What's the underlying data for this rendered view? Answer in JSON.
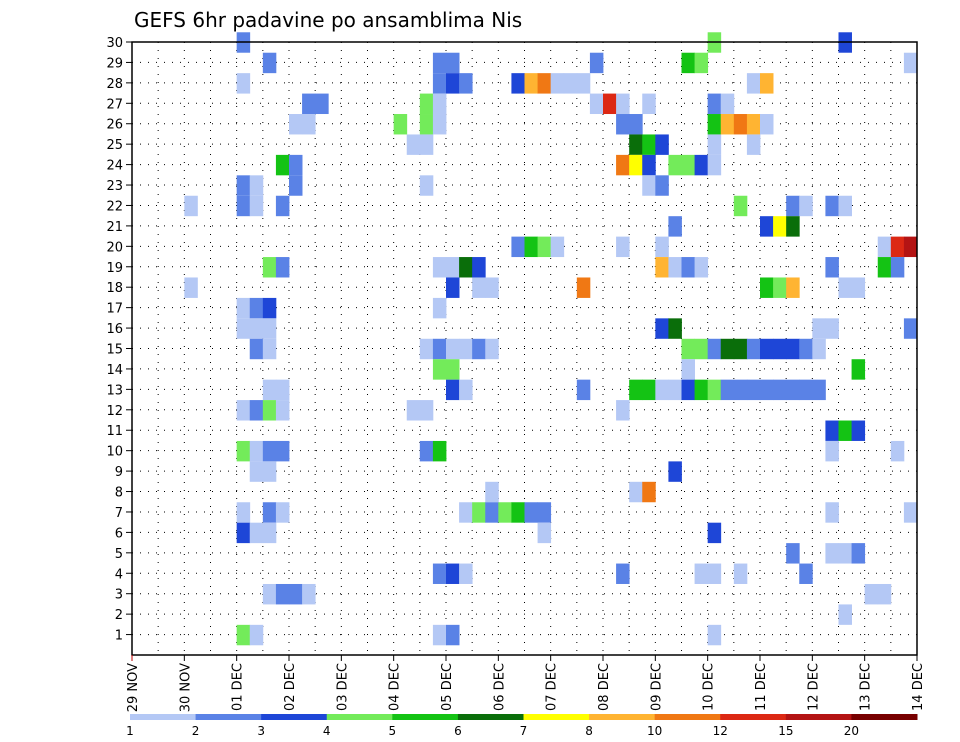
{
  "chart_data": {
    "type": "heatmap",
    "title": "GEFS 6hr padavine po ansamblima Nis",
    "x_tick_labels": [
      "29 NOV",
      "30 NOV",
      "01 DEC",
      "02 DEC",
      "03 DEC",
      "04 DEC",
      "05 DEC",
      "06 DEC",
      "07 DEC",
      "08 DEC",
      "09 DEC",
      "10 DEC",
      "11 DEC",
      "12 DEC",
      "13 DEC",
      "14 DEC"
    ],
    "x_start": "29 NOV",
    "x_step_hours": 6,
    "ylim": [
      0,
      30
    ],
    "y_tick_labels": [
      "1",
      "2",
      "3",
      "4",
      "5",
      "6",
      "7",
      "8",
      "9",
      "10",
      "11",
      "12",
      "13",
      "14",
      "15",
      "16",
      "17",
      "18",
      "19",
      "20",
      "21",
      "22",
      "23",
      "24",
      "25",
      "26",
      "27",
      "28",
      "29",
      "30"
    ],
    "grid": true,
    "legend": {
      "position": "bottom",
      "levels": [
        "1",
        "2",
        "3",
        "4",
        "5",
        "6",
        "7",
        "8",
        "10",
        "12",
        "15",
        "20"
      ],
      "colors": [
        "#b4c8f5",
        "#5a82e6",
        "#1e46d7",
        "#73eb5a",
        "#14c314",
        "#0a6e0a",
        "#ffff00",
        "#ffb432",
        "#f07814",
        "#dc2814",
        "#b41414",
        "#780000"
      ]
    },
    "cells": [
      {
        "row": 30,
        "col": 9,
        "cls": 2
      },
      {
        "row": 30,
        "col": 45,
        "cls": 4
      },
      {
        "row": 30,
        "col": 55,
        "cls": 3
      },
      {
        "row": 29,
        "col": 11,
        "cls": 2
      },
      {
        "row": 29,
        "col": 24,
        "cls": 2
      },
      {
        "row": 29,
        "col": 25,
        "cls": 2
      },
      {
        "row": 29,
        "col": 36,
        "cls": 2
      },
      {
        "row": 29,
        "col": 43,
        "cls": 5
      },
      {
        "row": 29,
        "col": 44,
        "cls": 4
      },
      {
        "row": 29,
        "col": 60,
        "cls": 1
      },
      {
        "row": 28,
        "col": 9,
        "cls": 1
      },
      {
        "row": 28,
        "col": 24,
        "cls": 2
      },
      {
        "row": 28,
        "col": 25,
        "cls": 3
      },
      {
        "row": 28,
        "col": 26,
        "cls": 2
      },
      {
        "row": 28,
        "col": 30,
        "cls": 3
      },
      {
        "row": 28,
        "col": 31,
        "cls": 8
      },
      {
        "row": 28,
        "col": 32,
        "cls": 9
      },
      {
        "row": 28,
        "col": 33,
        "cls": 1
      },
      {
        "row": 28,
        "col": 34,
        "cls": 1
      },
      {
        "row": 28,
        "col": 35,
        "cls": 1
      },
      {
        "row": 28,
        "col": 48,
        "cls": 1
      },
      {
        "row": 28,
        "col": 49,
        "cls": 8
      },
      {
        "row": 27,
        "col": 14,
        "cls": 2
      },
      {
        "row": 27,
        "col": 15,
        "cls": 2
      },
      {
        "row": 27,
        "col": 23,
        "cls": 4
      },
      {
        "row": 27,
        "col": 24,
        "cls": 1
      },
      {
        "row": 27,
        "col": 36,
        "cls": 1
      },
      {
        "row": 27,
        "col": 37,
        "cls": 10
      },
      {
        "row": 27,
        "col": 38,
        "cls": 1
      },
      {
        "row": 27,
        "col": 40,
        "cls": 1
      },
      {
        "row": 27,
        "col": 45,
        "cls": 2
      },
      {
        "row": 27,
        "col": 46,
        "cls": 1
      },
      {
        "row": 26,
        "col": 13,
        "cls": 1
      },
      {
        "row": 26,
        "col": 14,
        "cls": 1
      },
      {
        "row": 26,
        "col": 21,
        "cls": 4
      },
      {
        "row": 26,
        "col": 23,
        "cls": 4
      },
      {
        "row": 26,
        "col": 24,
        "cls": 1
      },
      {
        "row": 26,
        "col": 38,
        "cls": 2
      },
      {
        "row": 26,
        "col": 39,
        "cls": 2
      },
      {
        "row": 26,
        "col": 45,
        "cls": 5
      },
      {
        "row": 26,
        "col": 46,
        "cls": 8
      },
      {
        "row": 26,
        "col": 47,
        "cls": 9
      },
      {
        "row": 26,
        "col": 48,
        "cls": 8
      },
      {
        "row": 26,
        "col": 49,
        "cls": 1
      },
      {
        "row": 25,
        "col": 22,
        "cls": 1
      },
      {
        "row": 25,
        "col": 23,
        "cls": 1
      },
      {
        "row": 25,
        "col": 39,
        "cls": 6
      },
      {
        "row": 25,
        "col": 40,
        "cls": 5
      },
      {
        "row": 25,
        "col": 41,
        "cls": 3
      },
      {
        "row": 25,
        "col": 45,
        "cls": 1
      },
      {
        "row": 25,
        "col": 48,
        "cls": 1
      },
      {
        "row": 24,
        "col": 12,
        "cls": 5
      },
      {
        "row": 24,
        "col": 13,
        "cls": 2
      },
      {
        "row": 24,
        "col": 38,
        "cls": 9
      },
      {
        "row": 24,
        "col": 39,
        "cls": 7
      },
      {
        "row": 24,
        "col": 40,
        "cls": 3
      },
      {
        "row": 24,
        "col": 42,
        "cls": 4
      },
      {
        "row": 24,
        "col": 43,
        "cls": 4
      },
      {
        "row": 24,
        "col": 44,
        "cls": 3
      },
      {
        "row": 24,
        "col": 45,
        "cls": 1
      },
      {
        "row": 23,
        "col": 9,
        "cls": 2
      },
      {
        "row": 23,
        "col": 10,
        "cls": 1
      },
      {
        "row": 23,
        "col": 13,
        "cls": 2
      },
      {
        "row": 23,
        "col": 23,
        "cls": 1
      },
      {
        "row": 23,
        "col": 40,
        "cls": 1
      },
      {
        "row": 23,
        "col": 41,
        "cls": 2
      },
      {
        "row": 22,
        "col": 5,
        "cls": 1
      },
      {
        "row": 22,
        "col": 9,
        "cls": 2
      },
      {
        "row": 22,
        "col": 10,
        "cls": 1
      },
      {
        "row": 22,
        "col": 12,
        "cls": 2
      },
      {
        "row": 22,
        "col": 47,
        "cls": 4
      },
      {
        "row": 22,
        "col": 51,
        "cls": 2
      },
      {
        "row": 22,
        "col": 52,
        "cls": 1
      },
      {
        "row": 22,
        "col": 54,
        "cls": 2
      },
      {
        "row": 22,
        "col": 55,
        "cls": 1
      },
      {
        "row": 21,
        "col": 42,
        "cls": 2
      },
      {
        "row": 21,
        "col": 49,
        "cls": 3
      },
      {
        "row": 21,
        "col": 50,
        "cls": 7
      },
      {
        "row": 21,
        "col": 51,
        "cls": 6
      },
      {
        "row": 20,
        "col": 30,
        "cls": 2
      },
      {
        "row": 20,
        "col": 31,
        "cls": 5
      },
      {
        "row": 20,
        "col": 32,
        "cls": 4
      },
      {
        "row": 20,
        "col": 33,
        "cls": 1
      },
      {
        "row": 20,
        "col": 38,
        "cls": 1
      },
      {
        "row": 20,
        "col": 41,
        "cls": 1
      },
      {
        "row": 20,
        "col": 58,
        "cls": 1
      },
      {
        "row": 20,
        "col": 59,
        "cls": 10
      },
      {
        "row": 20,
        "col": 60,
        "cls": 11
      },
      {
        "row": 19,
        "col": 11,
        "cls": 4
      },
      {
        "row": 19,
        "col": 12,
        "cls": 2
      },
      {
        "row": 19,
        "col": 24,
        "cls": 1
      },
      {
        "row": 19,
        "col": 25,
        "cls": 1
      },
      {
        "row": 19,
        "col": 26,
        "cls": 6
      },
      {
        "row": 19,
        "col": 27,
        "cls": 3
      },
      {
        "row": 19,
        "col": 41,
        "cls": 8
      },
      {
        "row": 19,
        "col": 42,
        "cls": 1
      },
      {
        "row": 19,
        "col": 43,
        "cls": 2
      },
      {
        "row": 19,
        "col": 44,
        "cls": 1
      },
      {
        "row": 19,
        "col": 54,
        "cls": 2
      },
      {
        "row": 19,
        "col": 58,
        "cls": 5
      },
      {
        "row": 19,
        "col": 59,
        "cls": 2
      },
      {
        "row": 18,
        "col": 5,
        "cls": 1
      },
      {
        "row": 18,
        "col": 25,
        "cls": 3
      },
      {
        "row": 18,
        "col": 27,
        "cls": 1
      },
      {
        "row": 18,
        "col": 28,
        "cls": 1
      },
      {
        "row": 18,
        "col": 35,
        "cls": 9
      },
      {
        "row": 18,
        "col": 49,
        "cls": 5
      },
      {
        "row": 18,
        "col": 50,
        "cls": 4
      },
      {
        "row": 18,
        "col": 51,
        "cls": 8
      },
      {
        "row": 18,
        "col": 55,
        "cls": 1
      },
      {
        "row": 18,
        "col": 56,
        "cls": 1
      },
      {
        "row": 17,
        "col": 9,
        "cls": 1
      },
      {
        "row": 17,
        "col": 10,
        "cls": 2
      },
      {
        "row": 17,
        "col": 11,
        "cls": 3
      },
      {
        "row": 17,
        "col": 24,
        "cls": 1
      },
      {
        "row": 16,
        "col": 9,
        "cls": 1
      },
      {
        "row": 16,
        "col": 10,
        "cls": 1
      },
      {
        "row": 16,
        "col": 11,
        "cls": 1
      },
      {
        "row": 16,
        "col": 41,
        "cls": 3
      },
      {
        "row": 16,
        "col": 42,
        "cls": 6
      },
      {
        "row": 16,
        "col": 53,
        "cls": 1
      },
      {
        "row": 16,
        "col": 54,
        "cls": 1
      },
      {
        "row": 16,
        "col": 60,
        "cls": 2
      },
      {
        "row": 15,
        "col": 10,
        "cls": 2
      },
      {
        "row": 15,
        "col": 11,
        "cls": 1
      },
      {
        "row": 15,
        "col": 23,
        "cls": 1
      },
      {
        "row": 15,
        "col": 24,
        "cls": 2
      },
      {
        "row": 15,
        "col": 25,
        "cls": 1
      },
      {
        "row": 15,
        "col": 26,
        "cls": 1
      },
      {
        "row": 15,
        "col": 27,
        "cls": 2
      },
      {
        "row": 15,
        "col": 28,
        "cls": 1
      },
      {
        "row": 15,
        "col": 43,
        "cls": 4
      },
      {
        "row": 15,
        "col": 44,
        "cls": 4
      },
      {
        "row": 15,
        "col": 45,
        "cls": 2
      },
      {
        "row": 15,
        "col": 46,
        "cls": 6
      },
      {
        "row": 15,
        "col": 47,
        "cls": 6
      },
      {
        "row": 15,
        "col": 48,
        "cls": 2
      },
      {
        "row": 15,
        "col": 49,
        "cls": 3
      },
      {
        "row": 15,
        "col": 50,
        "cls": 3
      },
      {
        "row": 15,
        "col": 51,
        "cls": 3
      },
      {
        "row": 15,
        "col": 52,
        "cls": 2
      },
      {
        "row": 15,
        "col": 53,
        "cls": 1
      },
      {
        "row": 14,
        "col": 24,
        "cls": 4
      },
      {
        "row": 14,
        "col": 25,
        "cls": 4
      },
      {
        "row": 14,
        "col": 43,
        "cls": 1
      },
      {
        "row": 14,
        "col": 56,
        "cls": 5
      },
      {
        "row": 13,
        "col": 11,
        "cls": 1
      },
      {
        "row": 13,
        "col": 12,
        "cls": 1
      },
      {
        "row": 13,
        "col": 25,
        "cls": 3
      },
      {
        "row": 13,
        "col": 26,
        "cls": 1
      },
      {
        "row": 13,
        "col": 35,
        "cls": 2
      },
      {
        "row": 13,
        "col": 39,
        "cls": 5
      },
      {
        "row": 13,
        "col": 40,
        "cls": 5
      },
      {
        "row": 13,
        "col": 41,
        "cls": 1
      },
      {
        "row": 13,
        "col": 42,
        "cls": 1
      },
      {
        "row": 13,
        "col": 43,
        "cls": 3
      },
      {
        "row": 13,
        "col": 44,
        "cls": 5
      },
      {
        "row": 13,
        "col": 45,
        "cls": 4
      },
      {
        "row": 13,
        "col": 46,
        "cls": 2
      },
      {
        "row": 13,
        "col": 47,
        "cls": 2
      },
      {
        "row": 13,
        "col": 48,
        "cls": 2
      },
      {
        "row": 13,
        "col": 49,
        "cls": 2
      },
      {
        "row": 13,
        "col": 50,
        "cls": 2
      },
      {
        "row": 13,
        "col": 51,
        "cls": 2
      },
      {
        "row": 13,
        "col": 52,
        "cls": 2
      },
      {
        "row": 13,
        "col": 53,
        "cls": 2
      },
      {
        "row": 12,
        "col": 9,
        "cls": 1
      },
      {
        "row": 12,
        "col": 10,
        "cls": 2
      },
      {
        "row": 12,
        "col": 11,
        "cls": 4
      },
      {
        "row": 12,
        "col": 12,
        "cls": 1
      },
      {
        "row": 12,
        "col": 22,
        "cls": 1
      },
      {
        "row": 12,
        "col": 23,
        "cls": 1
      },
      {
        "row": 12,
        "col": 38,
        "cls": 1
      },
      {
        "row": 11,
        "col": 54,
        "cls": 3
      },
      {
        "row": 11,
        "col": 55,
        "cls": 5
      },
      {
        "row": 11,
        "col": 56,
        "cls": 3
      },
      {
        "row": 10,
        "col": 9,
        "cls": 4
      },
      {
        "row": 10,
        "col": 10,
        "cls": 1
      },
      {
        "row": 10,
        "col": 11,
        "cls": 2
      },
      {
        "row": 10,
        "col": 12,
        "cls": 2
      },
      {
        "row": 10,
        "col": 23,
        "cls": 2
      },
      {
        "row": 10,
        "col": 24,
        "cls": 5
      },
      {
        "row": 10,
        "col": 54,
        "cls": 1
      },
      {
        "row": 10,
        "col": 59,
        "cls": 1
      },
      {
        "row": 9,
        "col": 10,
        "cls": 1
      },
      {
        "row": 9,
        "col": 11,
        "cls": 1
      },
      {
        "row": 9,
        "col": 42,
        "cls": 3
      },
      {
        "row": 8,
        "col": 28,
        "cls": 1
      },
      {
        "row": 8,
        "col": 39,
        "cls": 1
      },
      {
        "row": 8,
        "col": 40,
        "cls": 9
      },
      {
        "row": 7,
        "col": 9,
        "cls": 1
      },
      {
        "row": 7,
        "col": 11,
        "cls": 2
      },
      {
        "row": 7,
        "col": 12,
        "cls": 1
      },
      {
        "row": 7,
        "col": 26,
        "cls": 1
      },
      {
        "row": 7,
        "col": 27,
        "cls": 4
      },
      {
        "row": 7,
        "col": 28,
        "cls": 2
      },
      {
        "row": 7,
        "col": 29,
        "cls": 4
      },
      {
        "row": 7,
        "col": 30,
        "cls": 5
      },
      {
        "row": 7,
        "col": 31,
        "cls": 2
      },
      {
        "row": 7,
        "col": 32,
        "cls": 2
      },
      {
        "row": 7,
        "col": 54,
        "cls": 1
      },
      {
        "row": 7,
        "col": 60,
        "cls": 1
      },
      {
        "row": 6,
        "col": 9,
        "cls": 3
      },
      {
        "row": 6,
        "col": 10,
        "cls": 1
      },
      {
        "row": 6,
        "col": 11,
        "cls": 1
      },
      {
        "row": 6,
        "col": 32,
        "cls": 1
      },
      {
        "row": 6,
        "col": 45,
        "cls": 3
      },
      {
        "row": 5,
        "col": 51,
        "cls": 2
      },
      {
        "row": 5,
        "col": 54,
        "cls": 1
      },
      {
        "row": 5,
        "col": 55,
        "cls": 1
      },
      {
        "row": 5,
        "col": 56,
        "cls": 2
      },
      {
        "row": 4,
        "col": 24,
        "cls": 2
      },
      {
        "row": 4,
        "col": 25,
        "cls": 3
      },
      {
        "row": 4,
        "col": 26,
        "cls": 1
      },
      {
        "row": 4,
        "col": 38,
        "cls": 2
      },
      {
        "row": 4,
        "col": 44,
        "cls": 1
      },
      {
        "row": 4,
        "col": 45,
        "cls": 1
      },
      {
        "row": 4,
        "col": 47,
        "cls": 1
      },
      {
        "row": 4,
        "col": 52,
        "cls": 2
      },
      {
        "row": 3,
        "col": 11,
        "cls": 1
      },
      {
        "row": 3,
        "col": 12,
        "cls": 2
      },
      {
        "row": 3,
        "col": 13,
        "cls": 2
      },
      {
        "row": 3,
        "col": 14,
        "cls": 1
      },
      {
        "row": 3,
        "col": 57,
        "cls": 1
      },
      {
        "row": 3,
        "col": 58,
        "cls": 1
      },
      {
        "row": 2,
        "col": 55,
        "cls": 1
      },
      {
        "row": 1,
        "col": 9,
        "cls": 4
      },
      {
        "row": 1,
        "col": 10,
        "cls": 1
      },
      {
        "row": 1,
        "col": 24,
        "cls": 1
      },
      {
        "row": 1,
        "col": 25,
        "cls": 2
      },
      {
        "row": 1,
        "col": 45,
        "cls": 1
      }
    ]
  }
}
